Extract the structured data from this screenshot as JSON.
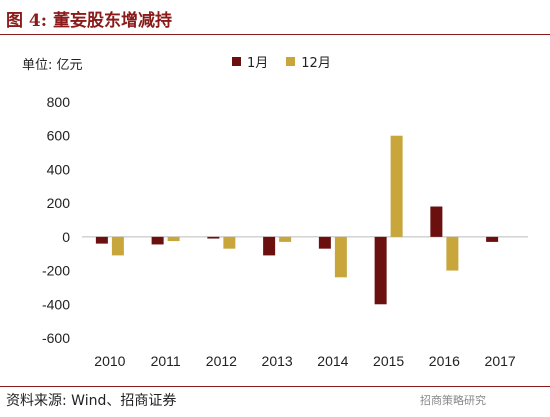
{
  "figure": {
    "title": "图 4:  董妄股东增减持",
    "unit_label": "单位:  亿元",
    "source": "资料来源:  Wind、招商证券",
    "watermark": "招商策略研究"
  },
  "chart_data": {
    "type": "bar",
    "categories": [
      "2010",
      "2011",
      "2012",
      "2013",
      "2014",
      "2015",
      "2016",
      "2017"
    ],
    "series": [
      {
        "name": "1月",
        "color": "#6b0f0f",
        "values": [
          -40,
          -45,
          -10,
          -110,
          -70,
          -400,
          180,
          -30
        ]
      },
      {
        "name": "12月",
        "color": "#c8a63c",
        "values": [
          -110,
          -25,
          -70,
          -30,
          -240,
          600,
          -200,
          null
        ]
      }
    ],
    "ylim": [
      -600,
      800
    ],
    "yticks": [
      -600,
      -400,
      -200,
      0,
      200,
      400,
      600,
      800
    ],
    "grid": false,
    "legend_position": "top"
  }
}
